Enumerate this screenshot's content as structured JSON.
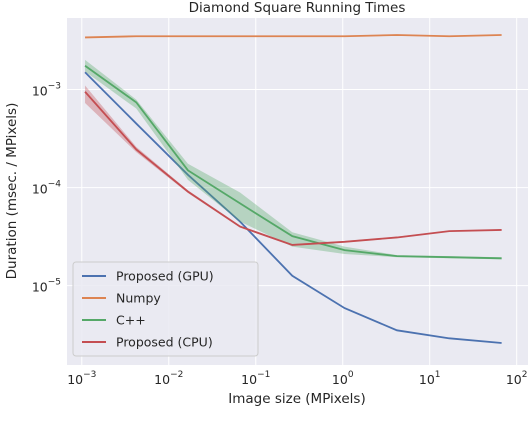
{
  "chart_data": {
    "type": "line",
    "title": "Diamond Square Running Times",
    "xlabel": "Image size (MPixels)",
    "ylabel": "Duration (msec. / MPixels)",
    "x": [
      0.00109,
      0.00423,
      0.0166,
      0.066,
      0.263,
      1.05,
      4.2,
      16.8,
      67.1
    ],
    "xscale": "log",
    "yscale": "log",
    "xlim": [
      0.000676,
      134.9
    ],
    "ylim": [
      1.55e-06,
      0.00537
    ],
    "xticks": [
      {
        "value": 0.001,
        "label": "10−3"
      },
      {
        "value": 0.01,
        "label": "10−2"
      },
      {
        "value": 0.1,
        "label": "10−1"
      },
      {
        "value": 1,
        "label": "100"
      },
      {
        "value": 10,
        "label": "101"
      },
      {
        "value": 100,
        "label": "102"
      }
    ],
    "yticks": [
      {
        "value": 1e-05,
        "label": "10−5"
      },
      {
        "value": 0.0001,
        "label": "10−4"
      },
      {
        "value": 0.001,
        "label": "10−3"
      }
    ],
    "grid": true,
    "legend": "lower left",
    "series": [
      {
        "name": "Proposed (GPU)",
        "color": "#4c72b0",
        "values": [
          0.0015,
          0.00045,
          0.000135,
          4.5e-05,
          1.26e-05,
          5.9e-06,
          3.5e-06,
          2.9e-06,
          2.6e-06
        ]
      },
      {
        "name": "Numpy",
        "color": "#dd8452",
        "values": [
          0.0034,
          0.0035,
          0.0035,
          0.0035,
          0.0035,
          0.0035,
          0.0036,
          0.0035,
          0.0036
        ]
      },
      {
        "name": "C++",
        "color": "#55a868",
        "values": [
          0.00175,
          0.00074,
          0.00015,
          6.9e-05,
          3.2e-05,
          2.3e-05,
          2e-05,
          1.95e-05,
          1.9e-05
        ],
        "lower": [
          0.00153,
          0.00064,
          0.00012,
          4.5e-05,
          2.5e-05,
          2.1e-05,
          1.95e-05,
          1.9e-05,
          1.85e-05
        ],
        "upper": [
          0.00201,
          0.00079,
          0.000175,
          8.9e-05,
          3.5e-05,
          2.5e-05,
          2.05e-05,
          2e-05,
          1.95e-05
        ]
      },
      {
        "name": "Proposed (CPU)",
        "color": "#c44e52",
        "values": [
          0.00095,
          0.000245,
          9.1e-05,
          4e-05,
          2.6e-05,
          2.8e-05,
          3.1e-05,
          3.6e-05,
          3.7e-05
        ],
        "lower": [
          0.00073,
          0.00023,
          8.8e-05,
          3.9e-05,
          2.55e-05,
          2.75e-05,
          3.05e-05,
          3.55e-05,
          3.65e-05
        ],
        "upper": [
          0.0011,
          0.00026,
          9.4e-05,
          4.1e-05,
          2.65e-05,
          2.85e-05,
          3.15e-05,
          3.65e-05,
          3.75e-05
        ]
      }
    ]
  }
}
